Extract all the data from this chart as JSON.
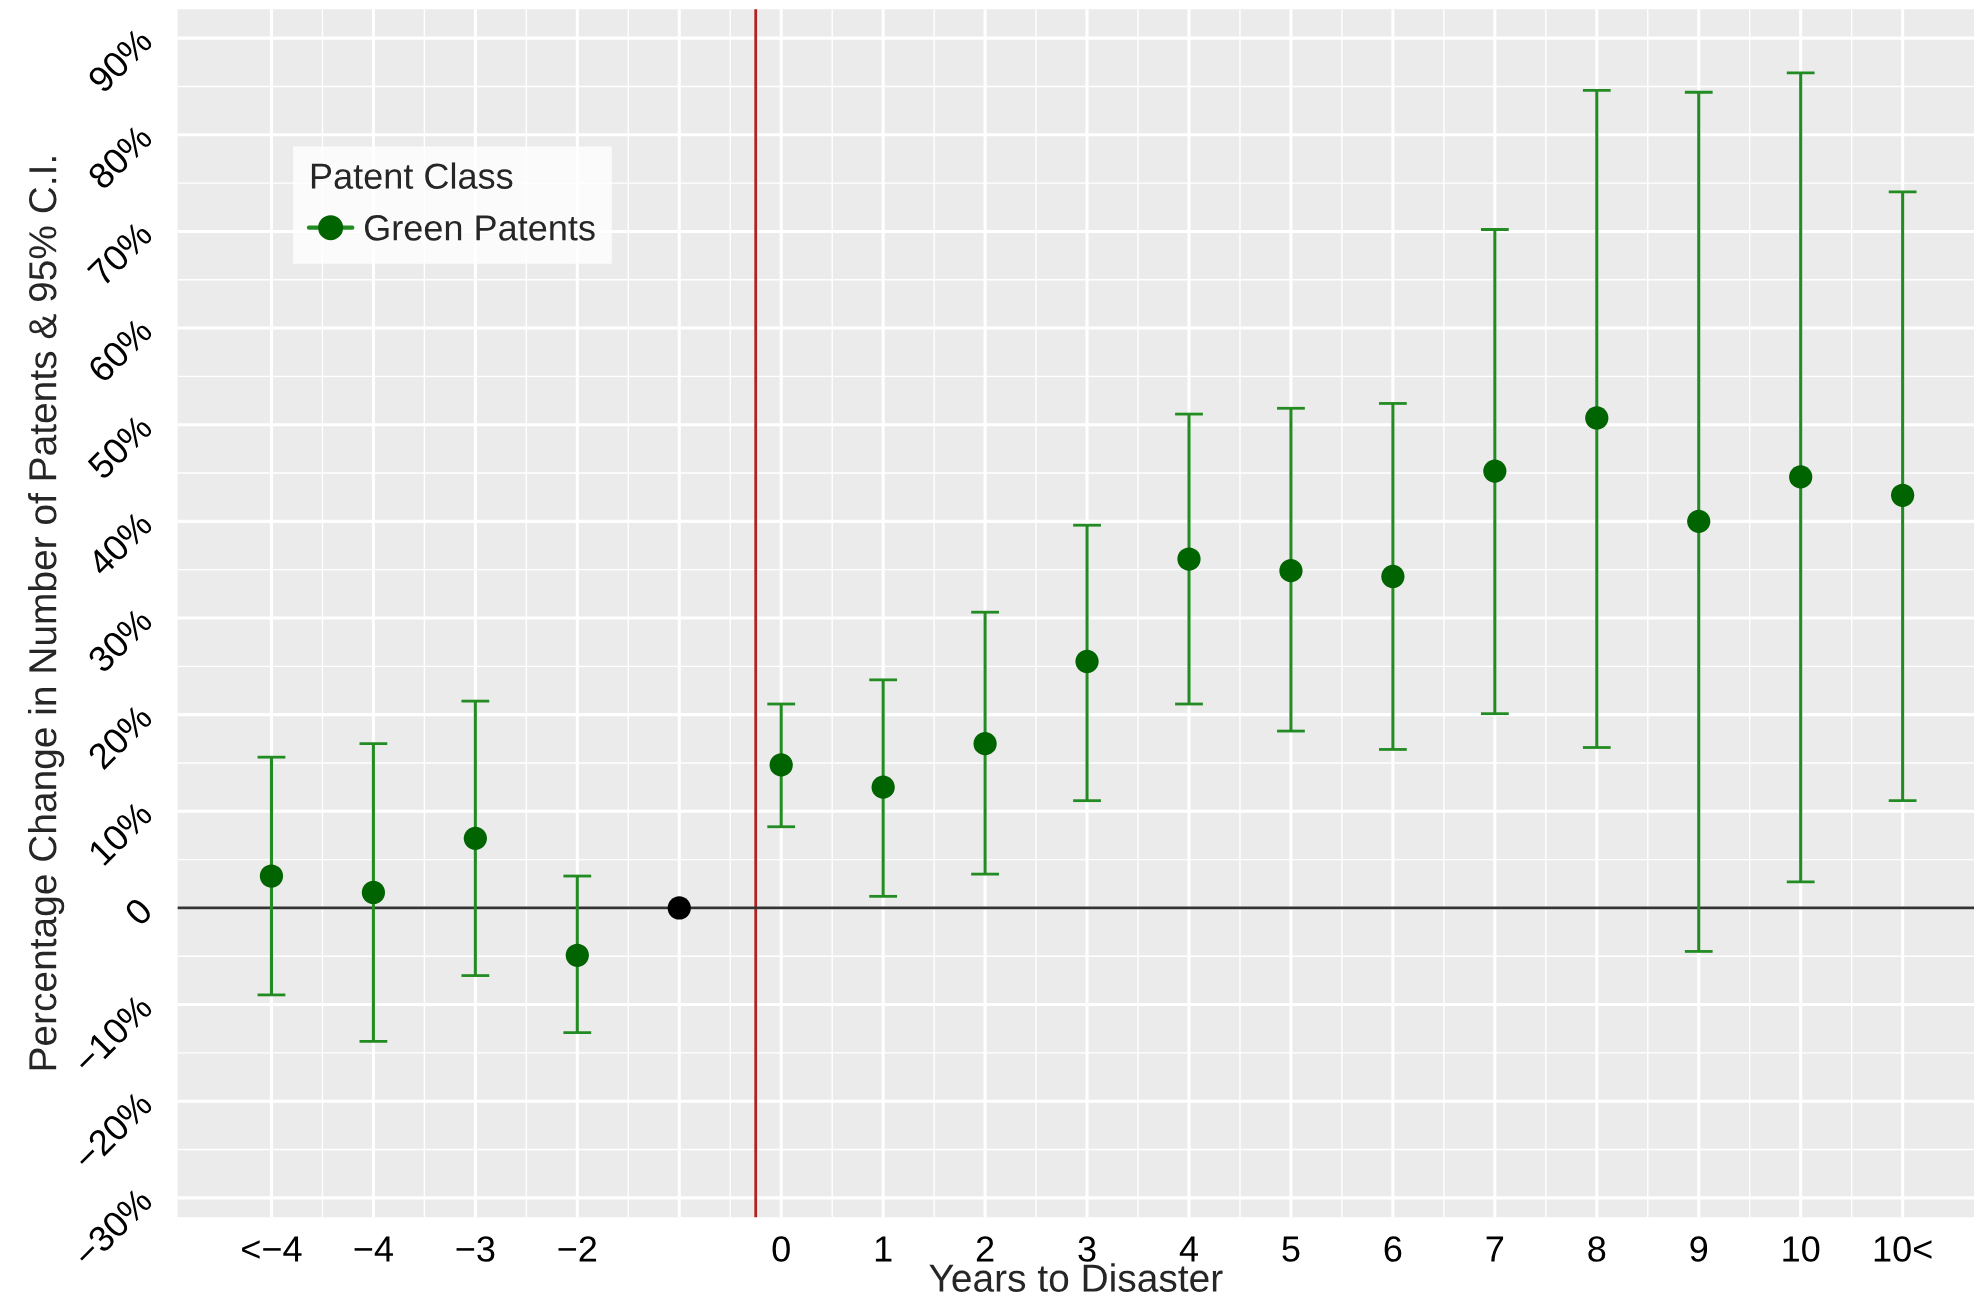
{
  "chart_data": {
    "type": "scatter",
    "xlabel": "Years to Disaster",
    "ylabel": "Percentage Change in Number of Patents & 95% C.I.",
    "legend_title": "Patent Class",
    "legend": "top left",
    "grid": true,
    "marker": "circle",
    "xlim": [
      -5.92,
      11.7
    ],
    "xticks": [
      {
        "value": -5,
        "label": "<−4"
      },
      {
        "value": -4,
        "label": "−4"
      },
      {
        "value": -3,
        "label": "−3"
      },
      {
        "value": -2,
        "label": "−2"
      },
      {
        "value": -1,
        "label": null
      },
      0,
      1,
      2,
      3,
      4,
      5,
      6,
      7,
      8,
      9,
      10,
      {
        "value": 11,
        "label": "10<"
      }
    ],
    "ylim": [
      -32,
      93
    ],
    "yticks": [
      {
        "value": -30,
        "label": "−30%"
      },
      {
        "value": -20,
        "label": "−20%"
      },
      {
        "value": -10,
        "label": "−10%"
      },
      0,
      {
        "value": 10,
        "label": "10%"
      },
      {
        "value": 20,
        "label": "20%"
      },
      {
        "value": 30,
        "label": "30%"
      },
      {
        "value": 40,
        "label": "40%"
      },
      {
        "value": 50,
        "label": "50%"
      },
      {
        "value": 60,
        "label": "60%"
      },
      {
        "value": 70,
        "label": "70%"
      },
      {
        "value": 80,
        "label": "80%"
      },
      {
        "value": 90,
        "label": "90%"
      }
    ],
    "ref_lines": [
      {
        "axis": "x",
        "value": -0.25,
        "color": "#b22222"
      },
      {
        "axis": "y",
        "value": 0,
        "color": "#333333"
      }
    ],
    "series": [
      {
        "name": "Green Patents",
        "color": "#006400",
        "x": [
          -5,
          -4,
          -3,
          -2,
          0,
          1,
          2,
          3,
          4,
          5,
          6,
          7,
          8,
          9,
          10,
          11
        ],
        "values": [
          3.3,
          1.6,
          7.2,
          -4.9,
          14.8,
          12.5,
          17.0,
          25.5,
          36.1,
          34.9,
          34.3,
          45.2,
          50.7,
          40.0,
          44.6,
          42.7
        ],
        "errors": [
          [
            -9.0,
            15.6
          ],
          [
            -13.8,
            17.0
          ],
          [
            -7.0,
            21.4
          ],
          [
            -12.9,
            3.3
          ],
          [
            8.4,
            21.1
          ],
          [
            1.2,
            23.6
          ],
          [
            3.5,
            30.6
          ],
          [
            11.1,
            39.6
          ],
          [
            21.1,
            51.1
          ],
          [
            18.3,
            51.7
          ],
          [
            16.4,
            52.2
          ],
          [
            20.1,
            70.2
          ],
          [
            16.6,
            84.6
          ],
          [
            -4.5,
            84.4
          ],
          [
            2.7,
            86.4
          ],
          [
            11.1,
            74.1
          ]
        ]
      },
      {
        "color": "#000000",
        "x": [
          -1
        ],
        "values": [
          0
        ]
      }
    ]
  }
}
